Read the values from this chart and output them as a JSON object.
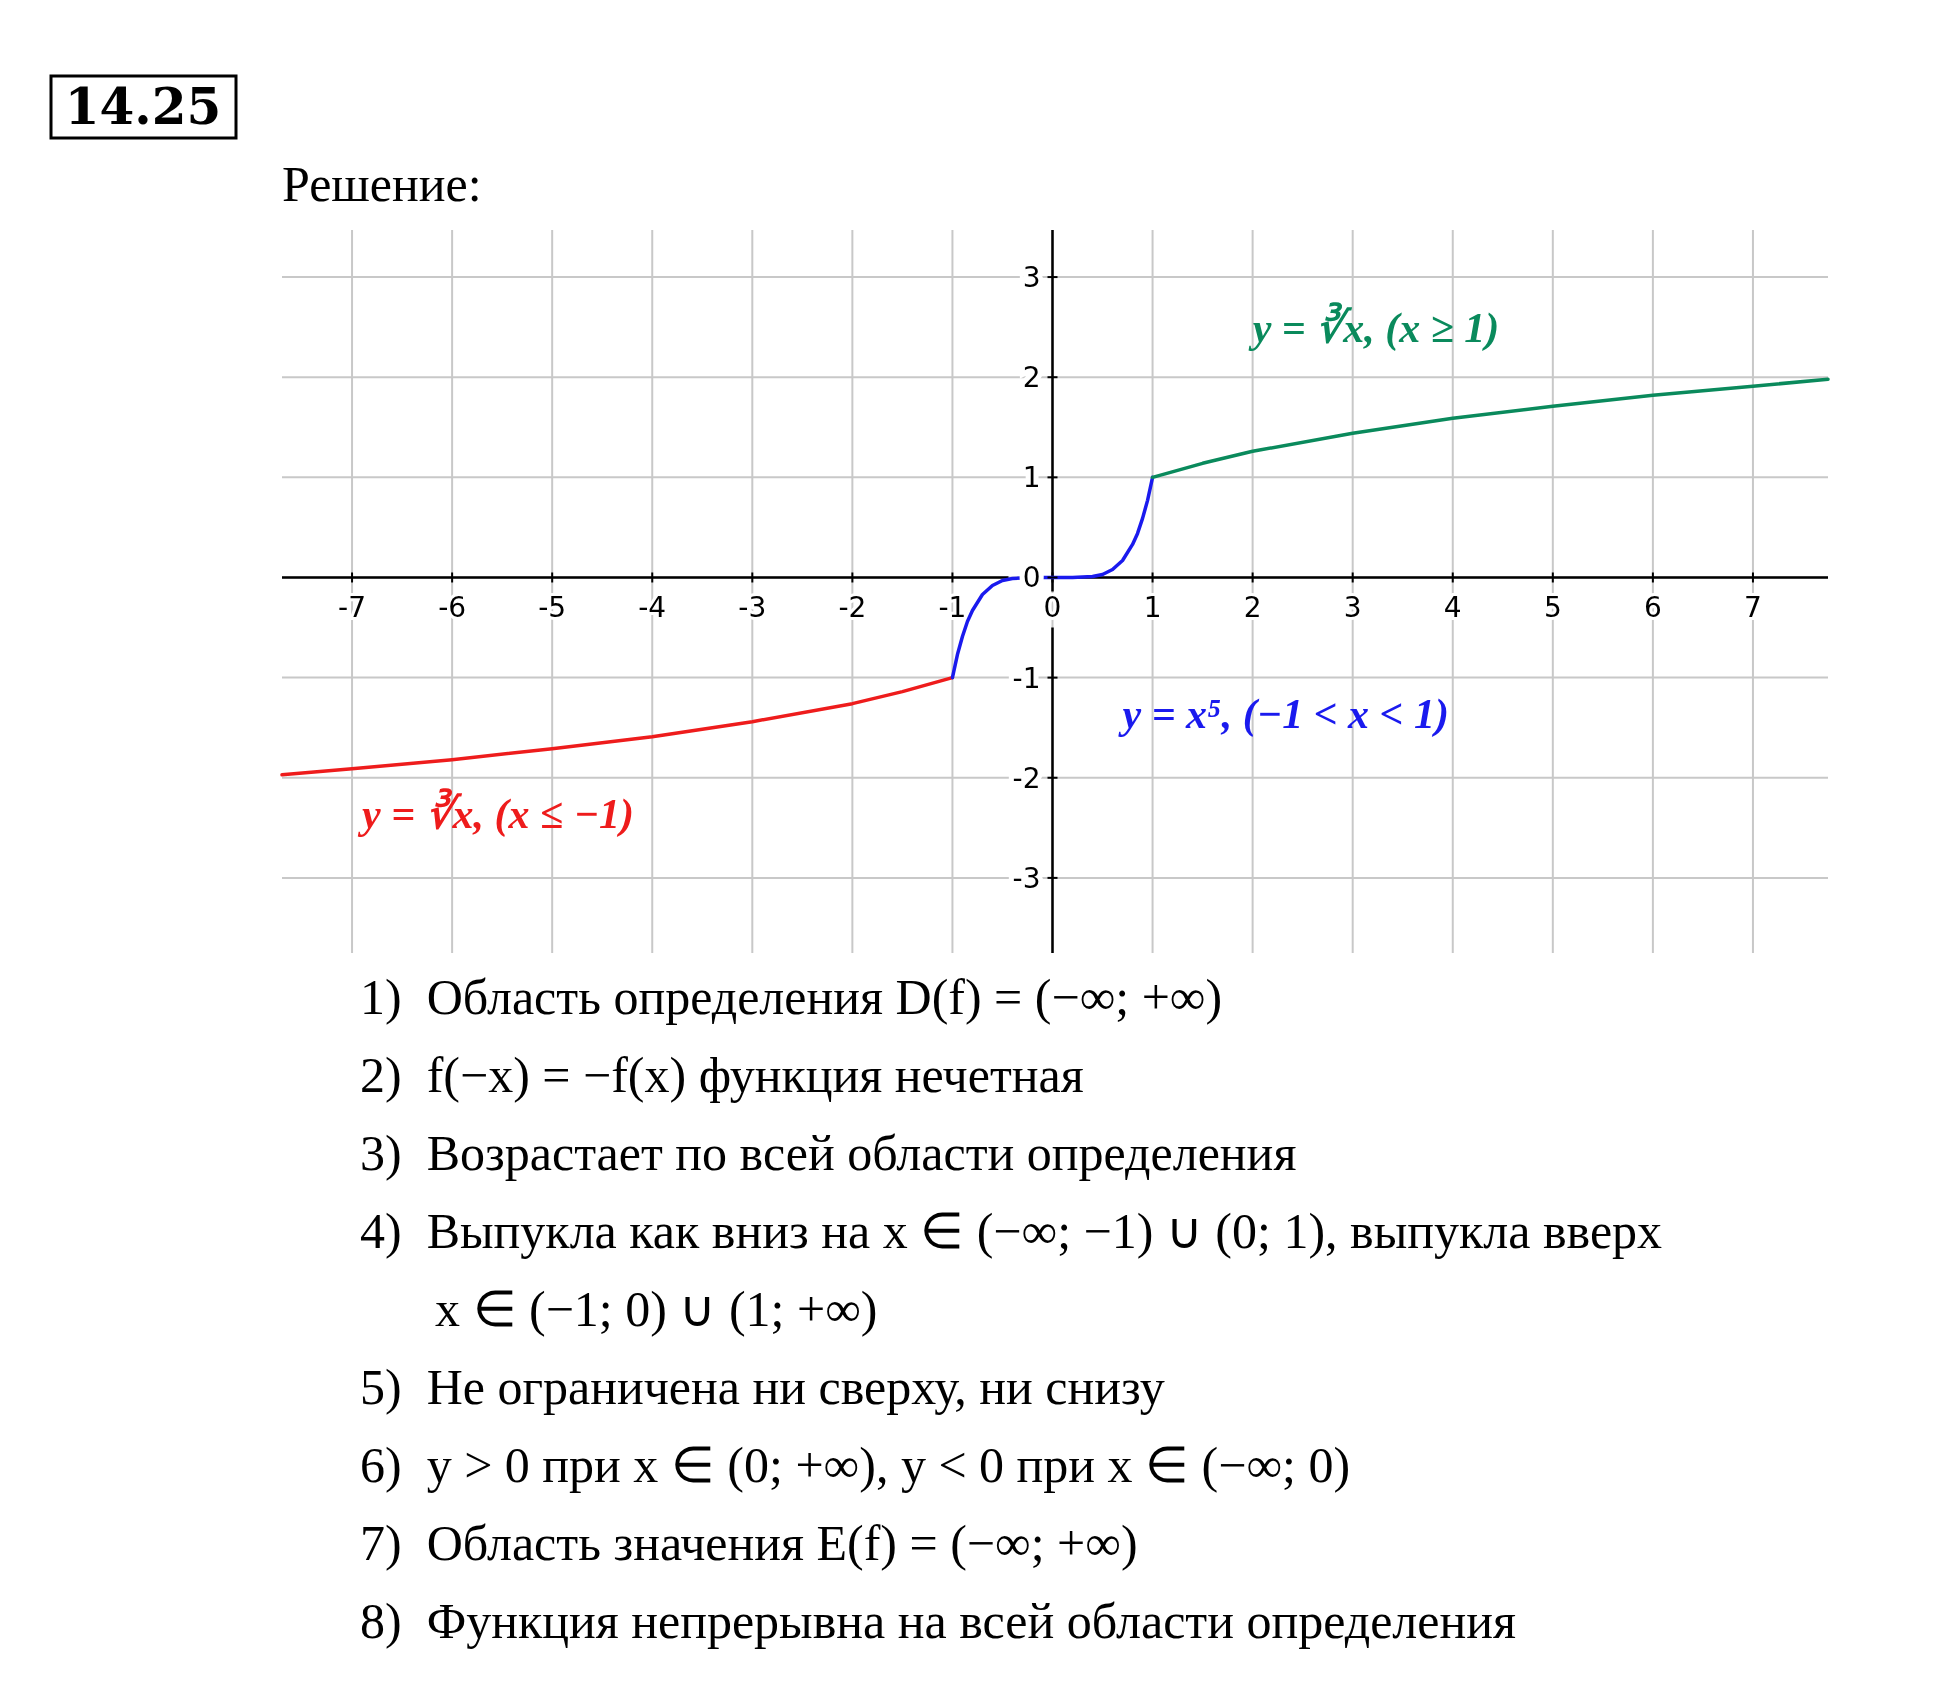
{
  "chart_data": {
    "type": "line",
    "title": "14.25",
    "subtitle": "Решение:",
    "xlim": [
      -7.7,
      7.75
    ],
    "ylim": [
      -3.75,
      3.47
    ],
    "xticks": [
      -7,
      -6,
      -5,
      -4,
      -3,
      -2,
      -1,
      0,
      1,
      2,
      3,
      4,
      5,
      6,
      7
    ],
    "yticks": [
      -3,
      -2,
      -1,
      0,
      1,
      2,
      3
    ],
    "grid": true,
    "line_style": "solid",
    "marker": "none",
    "series": [
      {
        "name": "y = ∛x,    (x ≤ −1)",
        "color": "#ee1c1c",
        "x": [
          -7.7,
          -7,
          -6,
          -5,
          -4,
          -3,
          -2,
          -1.5,
          -1
        ],
        "values": [
          -1.97,
          -1.91,
          -1.82,
          -1.71,
          -1.59,
          -1.44,
          -1.26,
          -1.14,
          -1
        ]
      },
      {
        "name": "y = x⁵,    (−1 < x < 1)",
        "color": "#1a1aee",
        "x": [
          -1,
          -0.95,
          -0.9,
          -0.85,
          -0.8,
          -0.7,
          -0.6,
          -0.5,
          -0.4,
          -0.2,
          0,
          0.2,
          0.4,
          0.5,
          0.6,
          0.7,
          0.8,
          0.85,
          0.9,
          0.95,
          1
        ],
        "values": [
          -1,
          -0.77,
          -0.59,
          -0.44,
          -0.33,
          -0.17,
          -0.08,
          -0.03,
          -0.01,
          0,
          0,
          0,
          0.01,
          0.03,
          0.08,
          0.17,
          0.33,
          0.44,
          0.59,
          0.77,
          1
        ]
      },
      {
        "name": "y = ∛x,    (x ≥ 1)",
        "color": "#0a8a5c",
        "x": [
          1,
          1.5,
          2,
          3,
          4,
          5,
          6,
          7,
          7.75
        ],
        "values": [
          1,
          1.14,
          1.26,
          1.44,
          1.59,
          1.71,
          1.82,
          1.91,
          1.98
        ]
      }
    ],
    "annotations": [
      "1)  Область определения D(f) = (−∞; +∞)",
      "2)  f(−x) = −f(x) функция нечетная",
      "3)  Возрастает по всей области определения",
      "4)  Выпукла как вниз на x ∈ (−∞; −1) ∪ (0; 1), выпукла вверх",
      "      x ∈ (−1; 0) ∪ (1; +∞)",
      "5)  Не ограничена ни сверху, ни снизу",
      "6)  y > 0 при x ∈ (0; +∞), y < 0 при x ∈ (−∞; 0)",
      "7)  Область значения E(f) = (−∞; +∞)",
      "8)  Функция непрерывна на всей области определения"
    ]
  }
}
